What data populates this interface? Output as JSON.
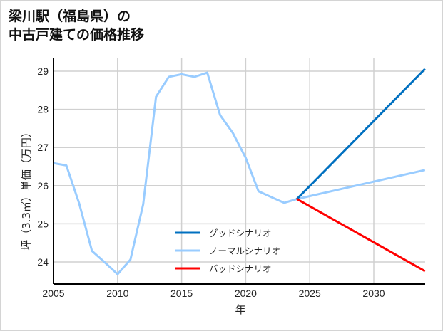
{
  "title": {
    "line1": "梁川駅（福島県）の",
    "line2": "中古戸建ての価格推移"
  },
  "chart_data": {
    "type": "line",
    "title": "梁川駅（福島県）の中古戸建ての価格推移",
    "xlabel": "年",
    "ylabel": "坪（3.3㎡）単価（万円）",
    "xlim": [
      2005,
      2034
    ],
    "ylim": [
      23.4,
      29.3
    ],
    "xticks": [
      2005,
      2010,
      2015,
      2020,
      2025,
      2030
    ],
    "yticks": [
      24,
      25,
      26,
      27,
      28,
      29
    ],
    "grid": true,
    "legend_position": "lower center",
    "series": [
      {
        "name": "グッドシナリオ",
        "color": "#0070c0",
        "x": [
          2024,
          2034
        ],
        "y": [
          25.65,
          29.06
        ]
      },
      {
        "name": "ノーマルシナリオ",
        "color": "#99ccff",
        "x": [
          2005,
          2006,
          2007,
          2008,
          2009,
          2010,
          2011,
          2012,
          2013,
          2014,
          2015,
          2016,
          2017,
          2018,
          2019,
          2020,
          2021,
          2022,
          2023,
          2024,
          2034
        ],
        "y": [
          26.59,
          26.53,
          25.54,
          24.29,
          23.99,
          23.68,
          24.06,
          25.51,
          28.33,
          28.85,
          28.92,
          28.85,
          28.96,
          27.85,
          27.38,
          26.73,
          25.85,
          25.7,
          25.55,
          25.65,
          26.41
        ]
      },
      {
        "name": "バッドシナリオ",
        "color": "#ff0000",
        "x": [
          2024,
          2034
        ],
        "y": [
          25.65,
          23.76
        ]
      }
    ]
  }
}
